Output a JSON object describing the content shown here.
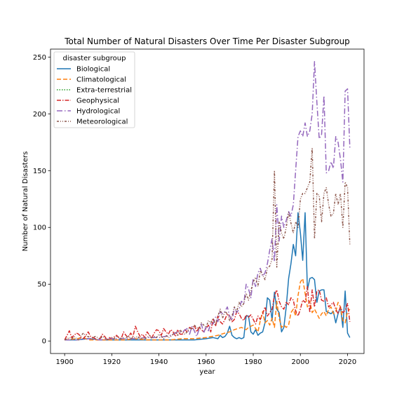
{
  "chart_data": {
    "type": "line",
    "title": "Total Number of Natural Disasters Over Time Per Disaster Subgroup",
    "xlabel": "year",
    "ylabel": "Number of Natural Disasters",
    "xlim": [
      1894,
      2027
    ],
    "ylim": [
      -11,
      257
    ],
    "xticks": [
      1900,
      1920,
      1940,
      1960,
      1980,
      2000,
      2020
    ],
    "yticks": [
      0,
      50,
      100,
      150,
      200,
      250
    ],
    "grid": false,
    "legend": {
      "title": "disaster subgroup",
      "placement": "top-left"
    },
    "series": [
      {
        "name": "Biological",
        "color": "#1f77b4",
        "dash": "",
        "x": [
          1900,
          1905,
          1910,
          1915,
          1920,
          1925,
          1930,
          1935,
          1940,
          1945,
          1950,
          1955,
          1960,
          1963,
          1965,
          1966,
          1967,
          1968,
          1969,
          1970,
          1971,
          1972,
          1973,
          1974,
          1975,
          1976,
          1977,
          1978,
          1979,
          1980,
          1981,
          1982,
          1983,
          1984,
          1985,
          1986,
          1987,
          1988,
          1989,
          1990,
          1991,
          1992,
          1993,
          1994,
          1995,
          1996,
          1997,
          1998,
          1999,
          2000,
          2001,
          2002,
          2003,
          2004,
          2005,
          2006,
          2007,
          2008,
          2009,
          2010,
          2011,
          2012,
          2013,
          2014,
          2015,
          2016,
          2017,
          2018,
          2019,
          2020,
          2021
        ],
        "y": [
          1,
          1,
          2,
          1,
          1,
          1,
          1,
          1,
          1,
          1,
          1,
          1,
          2,
          3,
          2,
          5,
          3,
          4,
          7,
          13,
          5,
          3,
          2,
          3,
          2,
          3,
          22,
          22,
          8,
          6,
          10,
          5,
          7,
          8,
          16,
          38,
          36,
          18,
          43,
          28,
          25,
          8,
          12,
          30,
          55,
          68,
          85,
          75,
          113,
          95,
          71,
          113,
          45,
          55,
          56,
          54,
          34,
          44,
          45,
          45,
          26,
          25,
          24,
          26,
          16,
          24,
          30,
          12,
          44,
          7,
          3
        ]
      },
      {
        "name": "Climatological",
        "color": "#ff7f0e",
        "dash": "6,3",
        "x": [
          1900,
          1905,
          1908,
          1910,
          1915,
          1920,
          1925,
          1930,
          1935,
          1940,
          1945,
          1950,
          1955,
          1960,
          1965,
          1968,
          1970,
          1972,
          1975,
          1977,
          1978,
          1980,
          1982,
          1983,
          1984,
          1985,
          1986,
          1987,
          1988,
          1989,
          1990,
          1991,
          1992,
          1993,
          1994,
          1995,
          1996,
          1997,
          1998,
          1999,
          2000,
          2001,
          2002,
          2003,
          2004,
          2005,
          2006,
          2007,
          2008,
          2009,
          2010,
          2011,
          2012,
          2013,
          2014,
          2015,
          2016,
          2017,
          2018,
          2019,
          2020,
          2021
        ],
        "y": [
          1,
          2,
          3,
          1,
          1,
          1,
          1,
          2,
          1,
          1,
          1,
          2,
          2,
          3,
          5,
          7,
          8,
          10,
          12,
          10,
          12,
          14,
          8,
          18,
          26,
          16,
          18,
          14,
          20,
          12,
          35,
          20,
          12,
          14,
          12,
          14,
          25,
          28,
          22,
          40,
          52,
          55,
          42,
          30,
          35,
          25,
          28,
          24,
          20,
          24,
          26,
          22,
          28,
          30,
          24,
          26,
          34,
          30,
          18,
          16,
          26,
          28
        ]
      },
      {
        "name": "Extra-terrestrial",
        "color": "#2ca02c",
        "dash": "1.5,2",
        "x": [
          2013
        ],
        "y": [
          1
        ]
      },
      {
        "name": "Geophysical",
        "color": "#d62728",
        "dash": "6,2,1.5,2",
        "x": [
          1900,
          1902,
          1903,
          1905,
          1906,
          1907,
          1908,
          1909,
          1910,
          1911,
          1912,
          1913,
          1914,
          1915,
          1916,
          1917,
          1918,
          1919,
          1920,
          1922,
          1923,
          1924,
          1925,
          1926,
          1927,
          1928,
          1929,
          1930,
          1931,
          1932,
          1933,
          1934,
          1935,
          1936,
          1937,
          1938,
          1939,
          1940,
          1941,
          1942,
          1943,
          1944,
          1945,
          1946,
          1947,
          1948,
          1949,
          1950,
          1951,
          1952,
          1953,
          1954,
          1955,
          1956,
          1957,
          1958,
          1959,
          1960,
          1961,
          1962,
          1963,
          1964,
          1965,
          1966,
          1967,
          1968,
          1969,
          1970,
          1971,
          1972,
          1973,
          1974,
          1975,
          1976,
          1977,
          1978,
          1979,
          1980,
          1981,
          1982,
          1983,
          1984,
          1985,
          1986,
          1987,
          1988,
          1989,
          1990,
          1991,
          1992,
          1993,
          1994,
          1995,
          1996,
          1997,
          1998,
          1999,
          2000,
          2001,
          2002,
          2003,
          2004,
          2005,
          2006,
          2007,
          2008,
          2009,
          2010,
          2011,
          2012,
          2013,
          2014,
          2015,
          2016,
          2017,
          2018,
          2019,
          2020,
          2021
        ],
        "y": [
          1,
          9,
          3,
          7,
          6,
          3,
          2,
          5,
          8,
          4,
          3,
          2,
          1,
          2,
          6,
          4,
          1,
          3,
          2,
          5,
          3,
          2,
          8,
          5,
          3,
          7,
          4,
          13,
          8,
          4,
          6,
          3,
          8,
          5,
          3,
          7,
          10,
          9,
          5,
          11,
          8,
          6,
          10,
          8,
          4,
          10,
          6,
          6,
          10,
          8,
          12,
          11,
          14,
          8,
          12,
          10,
          8,
          11,
          14,
          8,
          20,
          13,
          22,
          17,
          15,
          19,
          24,
          22,
          17,
          19,
          26,
          24,
          20,
          18,
          23,
          21,
          23,
          19,
          15,
          22,
          19,
          24,
          30,
          22,
          25,
          28,
          40,
          45,
          35,
          30,
          28,
          34,
          32,
          38,
          36,
          26,
          22,
          28,
          36,
          34,
          48,
          25,
          45,
          30,
          44,
          45,
          36,
          35,
          38,
          30,
          32,
          34,
          28,
          24,
          30,
          25,
          27,
          33,
          17
        ]
      },
      {
        "name": "Hydrological",
        "color": "#9467bd",
        "dash": "8,3,1.5,3",
        "x": [
          1900,
          1905,
          1910,
          1915,
          1920,
          1925,
          1930,
          1935,
          1940,
          1945,
          1948,
          1950,
          1952,
          1953,
          1954,
          1955,
          1956,
          1957,
          1958,
          1959,
          1960,
          1961,
          1962,
          1963,
          1964,
          1965,
          1966,
          1967,
          1968,
          1969,
          1970,
          1971,
          1972,
          1973,
          1974,
          1975,
          1976,
          1977,
          1978,
          1979,
          1980,
          1981,
          1982,
          1983,
          1984,
          1985,
          1986,
          1987,
          1988,
          1989,
          1990,
          1991,
          1992,
          1993,
          1994,
          1995,
          1996,
          1997,
          1998,
          1999,
          2000,
          2001,
          2002,
          2003,
          2004,
          2005,
          2006,
          2007,
          2008,
          2009,
          2010,
          2011,
          2012,
          2013,
          2014,
          2015,
          2016,
          2017,
          2018,
          2019,
          2020,
          2021
        ],
        "y": [
          1,
          1,
          2,
          1,
          2,
          2,
          2,
          3,
          3,
          5,
          8,
          8,
          11,
          6,
          13,
          9,
          4,
          10,
          15,
          7,
          13,
          9,
          16,
          15,
          21,
          17,
          26,
          24,
          26,
          30,
          22,
          18,
          29,
          25,
          28,
          35,
          33,
          50,
          46,
          38,
          55,
          48,
          60,
          64,
          57,
          60,
          68,
          80,
          90,
          70,
          120,
          88,
          110,
          100,
          106,
          114,
          110,
          120,
          150,
          180,
          185,
          180,
          192,
          180,
          185,
          200,
          246,
          210,
          178,
          182,
          216,
          148,
          150,
          158,
          152,
          180,
          175,
          160,
          140,
          220,
          222,
          170
        ]
      },
      {
        "name": "Meteorological",
        "color": "#8c564b",
        "dash": "3,2,1,2,1,2",
        "x": [
          1900,
          1901,
          1902,
          1903,
          1904,
          1905,
          1906,
          1907,
          1908,
          1909,
          1910,
          1911,
          1912,
          1913,
          1914,
          1915,
          1916,
          1917,
          1918,
          1919,
          1920,
          1921,
          1922,
          1923,
          1924,
          1925,
          1926,
          1927,
          1928,
          1929,
          1930,
          1931,
          1932,
          1933,
          1934,
          1935,
          1936,
          1937,
          1938,
          1939,
          1940,
          1941,
          1942,
          1943,
          1944,
          1945,
          1946,
          1947,
          1948,
          1949,
          1950,
          1951,
          1952,
          1953,
          1954,
          1955,
          1956,
          1957,
          1958,
          1959,
          1960,
          1961,
          1962,
          1963,
          1964,
          1965,
          1966,
          1967,
          1968,
          1969,
          1970,
          1971,
          1972,
          1973,
          1974,
          1975,
          1976,
          1977,
          1978,
          1979,
          1980,
          1981,
          1982,
          1983,
          1984,
          1985,
          1986,
          1987,
          1988,
          1989,
          1990,
          1991,
          1992,
          1993,
          1994,
          1995,
          1996,
          1997,
          1998,
          1999,
          2000,
          2001,
          2002,
          2003,
          2004,
          2005,
          2006,
          2007,
          2008,
          2009,
          2010,
          2011,
          2012,
          2013,
          2014,
          2015,
          2016,
          2017,
          2018,
          2019,
          2020,
          2021
        ],
        "y": [
          1,
          2,
          3,
          2,
          4,
          2,
          1,
          5,
          7,
          4,
          4,
          2,
          3,
          4,
          3,
          2,
          4,
          3,
          1,
          2,
          3,
          2,
          4,
          3,
          2,
          3,
          2,
          5,
          2,
          3,
          3,
          4,
          2,
          3,
          2,
          3,
          5,
          2,
          4,
          3,
          6,
          4,
          2,
          5,
          3,
          4,
          6,
          8,
          5,
          10,
          7,
          6,
          8,
          12,
          10,
          14,
          12,
          10,
          16,
          14,
          12,
          18,
          16,
          20,
          14,
          22,
          28,
          20,
          26,
          24,
          18,
          22,
          30,
          26,
          34,
          30,
          33,
          42,
          36,
          44,
          52,
          56,
          48,
          62,
          58,
          54,
          64,
          66,
          72,
          150,
          65,
          105,
          95,
          90,
          100,
          113,
          104,
          95,
          105,
          100,
          125,
          130,
          130,
          135,
          140,
          170,
          90,
          130,
          128,
          105,
          130,
          135,
          120,
          110,
          112,
          130,
          120,
          130,
          100,
          140,
          135,
          85
        ]
      }
    ]
  }
}
